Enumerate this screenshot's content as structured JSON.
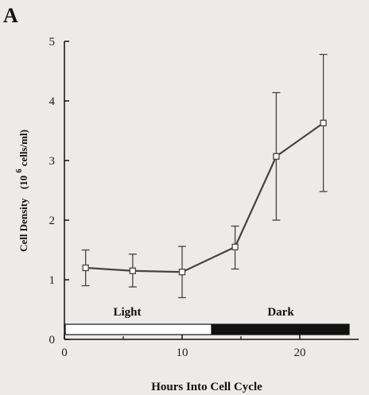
{
  "panel_label": "A",
  "colors": {
    "background": "#ecebe8",
    "line": "#444444",
    "light_band": "#ffffff",
    "dark_band": "#111111"
  },
  "chart_data": {
    "type": "line",
    "xlabel": "Hours Into Cell Cycle",
    "ylabel": {
      "prefix": "Cell Density",
      "open": "(10",
      "superscript": "6",
      "unit": " cells/ml)"
    },
    "xlim": [
      0,
      25
    ],
    "ylim": [
      0,
      5
    ],
    "x_ticks": [
      0,
      10,
      20
    ],
    "y_ticks": [
      0,
      1,
      2,
      3,
      4,
      5
    ],
    "grid": false,
    "series": [
      {
        "x": [
          1.8,
          5.8,
          10,
          14.5,
          18,
          22
        ],
        "y": [
          1.2,
          1.15,
          1.13,
          1.55,
          3.07,
          3.63
        ],
        "err_low": [
          0.9,
          0.88,
          0.7,
          1.18,
          2.0,
          2.48
        ],
        "err_high": [
          1.5,
          1.43,
          1.56,
          1.9,
          4.14,
          4.78
        ]
      }
    ],
    "bands": [
      {
        "label": "Light",
        "x": [
          0,
          12.5
        ],
        "color": "#ffffff"
      },
      {
        "label": "Dark",
        "x": [
          12.5,
          25
        ],
        "color": "#111111"
      }
    ]
  }
}
